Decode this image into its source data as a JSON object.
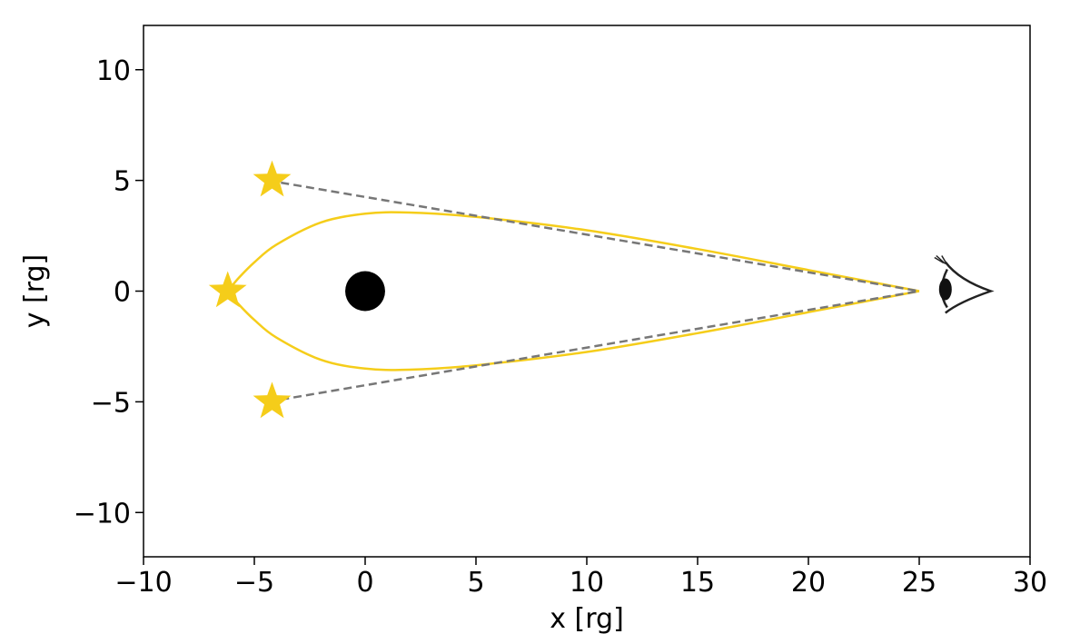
{
  "chart_data": {
    "type": "line",
    "title": "",
    "xlabel": "x [rg]",
    "ylabel": "y [rg]",
    "xlim": [
      -10,
      30
    ],
    "ylim": [
      -12,
      12
    ],
    "xticks": [
      -10,
      -5,
      0,
      5,
      10,
      15,
      20,
      25,
      30
    ],
    "xtick_labels": [
      "−10",
      "−5",
      "0",
      "5",
      "10",
      "15",
      "20",
      "25",
      "30"
    ],
    "yticks": [
      -10,
      -5,
      0,
      5,
      10
    ],
    "ytick_labels": [
      "−10",
      "−5",
      "0",
      "5",
      "10"
    ],
    "grid": false,
    "legend": "none",
    "series": [
      {
        "style": "solid",
        "color": "#f5cd1a",
        "x": [
          25,
          20,
          15,
          10,
          5,
          2,
          0,
          -2,
          -4,
          -5,
          -5.7,
          -6.2
        ],
        "y": [
          0,
          0.95,
          1.9,
          2.75,
          3.35,
          3.55,
          3.5,
          3.1,
          2.1,
          1.3,
          0.6,
          0
        ]
      },
      {
        "style": "solid",
        "color": "#f5cd1a",
        "x": [
          25,
          20,
          15,
          10,
          5,
          2,
          0,
          -2,
          -4,
          -5,
          -5.7,
          -6.2
        ],
        "y": [
          0,
          -0.95,
          -1.9,
          -2.75,
          -3.35,
          -3.55,
          -3.5,
          -3.1,
          -2.1,
          -1.3,
          -0.6,
          0
        ]
      },
      {
        "style": "dashed",
        "color": "#777777",
        "x": [
          -3.8,
          25
        ],
        "y": [
          4.9,
          0
        ]
      },
      {
        "style": "dashed",
        "color": "#777777",
        "x": [
          -3.8,
          25
        ],
        "y": [
          -4.9,
          0
        ]
      }
    ],
    "stars": [
      {
        "x": -4.2,
        "y": 5,
        "color": "#f5cd1a"
      },
      {
        "x": -6.2,
        "y": 0,
        "color": "#f5cd1a"
      },
      {
        "x": -4.2,
        "y": -5,
        "color": "#f5cd1a"
      }
    ],
    "black_hole": {
      "x": 0,
      "y": 0,
      "radius": 1,
      "color": "#000000"
    },
    "observer": {
      "x": 27,
      "y": 0,
      "icon": "eye-icon"
    }
  }
}
